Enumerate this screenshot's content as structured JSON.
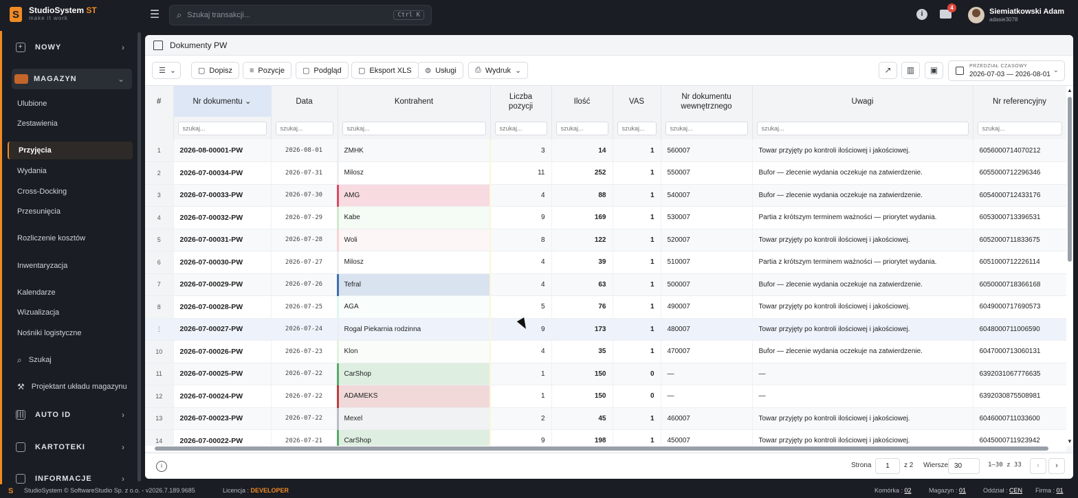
{
  "app": {
    "title_main": "StudioSystem",
    "title_accent": "ST",
    "tagline": "make it work",
    "logo_letter": "S"
  },
  "search": {
    "placeholder": "Szukaj transakcji...",
    "shortcut": "Ctrl K"
  },
  "notifications": {
    "count": "4"
  },
  "user": {
    "name": "Siemiatkowski Adam",
    "login": "adasie3078"
  },
  "sidebar": {
    "nowy": "NOWY",
    "magazyn": "MAGAZYN",
    "items": [
      "Ulubione",
      "Zestawienia",
      "Przyjęcia",
      "Wydania",
      "Cross-Docking",
      "Przesunięcia",
      "Rozliczenie kosztów",
      "Inwentaryzacja",
      "Kalendarze",
      "Wizualizacja",
      "Nośniki logistyczne"
    ],
    "szukaj": "Szukaj",
    "projektant": "Projektant układu magazynu",
    "auto_id": "AUTO ID",
    "kartoteki": "KARTOTEKI",
    "informacje": "INFORMACJE"
  },
  "breadcrumb": {
    "title": "Dokumenty PW"
  },
  "toolbar": {
    "dopisz": "Dopisz",
    "pozycje": "Pozycje",
    "podglad": "Podgląd",
    "eksport": "Eksport XLS",
    "uslugi": "Usługi",
    "wydruk": "Wydruk",
    "range_label": "PRZEDZIAŁ CZASOWY",
    "range_value": "2026-07-03 — 2026-08-01"
  },
  "table": {
    "headers": {
      "hash": "#",
      "nr": "Nr dokumentu",
      "data": "Data",
      "kontrahent": "Kontrahent",
      "liczba": "Liczba pozycji",
      "ilosc": "Ilość",
      "vas": "VAS",
      "nrwew": "Nr dokumentu wewnętrznego",
      "uwagi": "Uwagi",
      "ref": "Nr referencyjny"
    },
    "filter_placeholder": "szukaj...",
    "rows": [
      {
        "idx": "1",
        "nr": "2026-08-00001-PW",
        "data": "2026-08-01",
        "kontrahent": "ZMHK",
        "color": "",
        "liczba": "3",
        "ilosc": "14",
        "vas": "1",
        "nrwew": "560007",
        "uwagi": "Towar przyjęty po kontroli ilościowej i jakościowej.",
        "ref": "6056000714070212"
      },
      {
        "idx": "2",
        "nr": "2026-07-00034-PW",
        "data": "2026-07-31",
        "kontrahent": "Milosz",
        "color": "",
        "liczba": "11",
        "ilosc": "252",
        "vas": "1",
        "nrwew": "550007",
        "uwagi": "Bufor — zlecenie wydania oczekuje na zatwierdzenie.",
        "ref": "6055000712296346"
      },
      {
        "idx": "3",
        "nr": "2026-07-00033-PW",
        "data": "2026-07-30",
        "kontrahent": "AMG",
        "color": "#d94a66",
        "liczba": "4",
        "ilosc": "88",
        "vas": "1",
        "nrwew": "540007",
        "uwagi": "Bufor — zlecenie wydania oczekuje na zatwierdzenie.",
        "ref": "6054000712433176"
      },
      {
        "idx": "4",
        "nr": "2026-07-00032-PW",
        "data": "2026-07-29",
        "kontrahent": "Kabe",
        "color": "#cfeacd",
        "liczba": "9",
        "ilosc": "169",
        "vas": "1",
        "nrwew": "530007",
        "uwagi": "Partia z krótszym terminem ważności — priorytet wydania.",
        "ref": "6053000713396531"
      },
      {
        "idx": "5",
        "nr": "2026-07-00031-PW",
        "data": "2026-07-28",
        "kontrahent": "Woli",
        "color": "#f7d3d3",
        "liczba": "8",
        "ilosc": "122",
        "vas": "1",
        "nrwew": "520007",
        "uwagi": "Towar przyjęty po kontroli ilościowej i jakościowej.",
        "ref": "6052000711833675"
      },
      {
        "idx": "6",
        "nr": "2026-07-00030-PW",
        "data": "2026-07-27",
        "kontrahent": "Milosz",
        "color": "",
        "liczba": "4",
        "ilosc": "39",
        "vas": "1",
        "nrwew": "510007",
        "uwagi": "Partia z krótszym terminem ważności — priorytet wydania.",
        "ref": "6051000712226114"
      },
      {
        "idx": "7",
        "nr": "2026-07-00029-PW",
        "data": "2026-07-26",
        "kontrahent": "Tefral",
        "color": "#3f6fb0",
        "liczba": "4",
        "ilosc": "63",
        "vas": "1",
        "nrwew": "500007",
        "uwagi": "Bufor — zlecenie wydania oczekuje na zatwierdzenie.",
        "ref": "6050000718366168"
      },
      {
        "idx": "8",
        "nr": "2026-07-00028-PW",
        "data": "2026-07-25",
        "kontrahent": "AGA",
        "color": "#dff5f1",
        "liczba": "5",
        "ilosc": "76",
        "vas": "1",
        "nrwew": "490007",
        "uwagi": "Towar przyjęty po kontroli ilościowej i jakościowej.",
        "ref": "6049000717690573"
      },
      {
        "idx": "⋮",
        "nr": "2026-07-00027-PW",
        "data": "2026-07-24",
        "kontrahent": "Rogal Piekarnia rodzinna",
        "color": "",
        "liczba": "9",
        "ilosc": "173",
        "vas": "1",
        "nrwew": "480007",
        "uwagi": "Towar przyjęty po kontroli ilościowej i jakościowej.",
        "ref": "6048000711006590"
      },
      {
        "idx": "10",
        "nr": "2026-07-00026-PW",
        "data": "2026-07-23",
        "kontrahent": "Klon",
        "color": "#e2f2e0",
        "liczba": "4",
        "ilosc": "35",
        "vas": "1",
        "nrwew": "470007",
        "uwagi": "Bufor — zlecenie wydania oczekuje na zatwierdzenie.",
        "ref": "6047000713060131"
      },
      {
        "idx": "11",
        "nr": "2026-07-00025-PW",
        "data": "2026-07-22",
        "kontrahent": "CarShop",
        "color": "#5aa86a",
        "liczba": "1",
        "ilosc": "150",
        "vas": "0",
        "nrwew": "—",
        "uwagi": "—",
        "ref": "6392031067776635"
      },
      {
        "idx": "12",
        "nr": "2026-07-00024-PW",
        "data": "2026-07-22",
        "kontrahent": "ADAMEKS",
        "color": "#b94040",
        "liczba": "1",
        "ilosc": "150",
        "vas": "0",
        "nrwew": "—",
        "uwagi": "—",
        "ref": "6392030875508981"
      },
      {
        "idx": "13",
        "nr": "2026-07-00023-PW",
        "data": "2026-07-22",
        "kontrahent": "Mexel",
        "color": "#b9bec5",
        "liczba": "2",
        "ilosc": "45",
        "vas": "1",
        "nrwew": "460007",
        "uwagi": "Towar przyjęty po kontroli ilościowej i jakościowej.",
        "ref": "6046000711033600"
      },
      {
        "idx": "14",
        "nr": "2026-07-00022-PW",
        "data": "2026-07-21",
        "kontrahent": "CarShop",
        "color": "#5aa86a",
        "liczba": "9",
        "ilosc": "198",
        "vas": "1",
        "nrwew": "450007",
        "uwagi": "Towar przyjęty po kontroli ilościowej i jakościowej.",
        "ref": "6045000711923942"
      }
    ]
  },
  "pager": {
    "strona_label": "Strona",
    "page": "1",
    "of": "z 2",
    "wiersze_label": "Wiersze:",
    "rows": "30",
    "range": "1–30 z 33"
  },
  "footer": {
    "copyright": "StudioSystem © SoftwareStudio Sp. z o.o. - v2026.7.189.9685",
    "licencja_label": "Licencja :",
    "licencja_value": "DEVELOPER",
    "komorka_label": "Komórka :",
    "komorka_value": "02",
    "magazyn_label": "Magazyn :",
    "magazyn_value": "01",
    "oddzial_label": "Oddział :",
    "oddzial_value": "CEN",
    "firma_label": "Firma :",
    "firma_value": "01"
  }
}
